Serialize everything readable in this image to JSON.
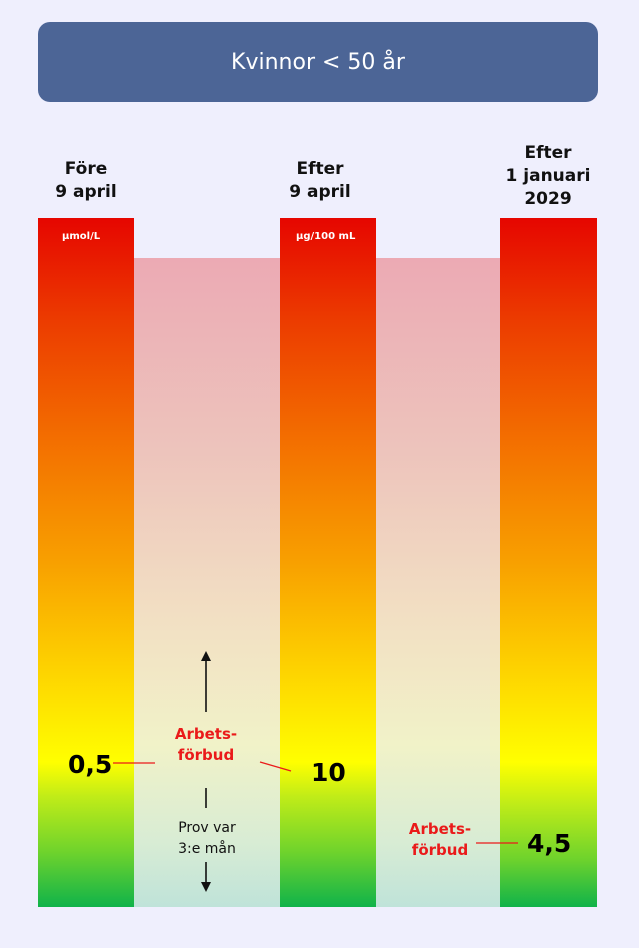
{
  "header": {
    "title": "Kvinnor < 50 år"
  },
  "columns": [
    {
      "heading_lines": [
        "Före",
        "9 april"
      ],
      "unit": "µmol/L",
      "value": "0,5"
    },
    {
      "heading_lines": [
        "Efter",
        "9 april"
      ],
      "unit": "µg/100 mL",
      "value": "10"
    },
    {
      "heading_lines": [
        "Efter",
        "1 januari",
        "2029"
      ],
      "unit": "",
      "value": "4,5"
    }
  ],
  "annotations": {
    "work_ban_1": [
      "Arbets-",
      "förbud"
    ],
    "work_ban_2": [
      "Arbets-",
      "förbud"
    ],
    "sampling": [
      "Prov var",
      "3:e mån"
    ]
  },
  "colors": {
    "header_bg": "#4c6596",
    "bar_top": "#e60600",
    "bar_mid": "#ffff00",
    "bar_bottom": "#10b34a",
    "label_red": "#ea1a1a"
  }
}
